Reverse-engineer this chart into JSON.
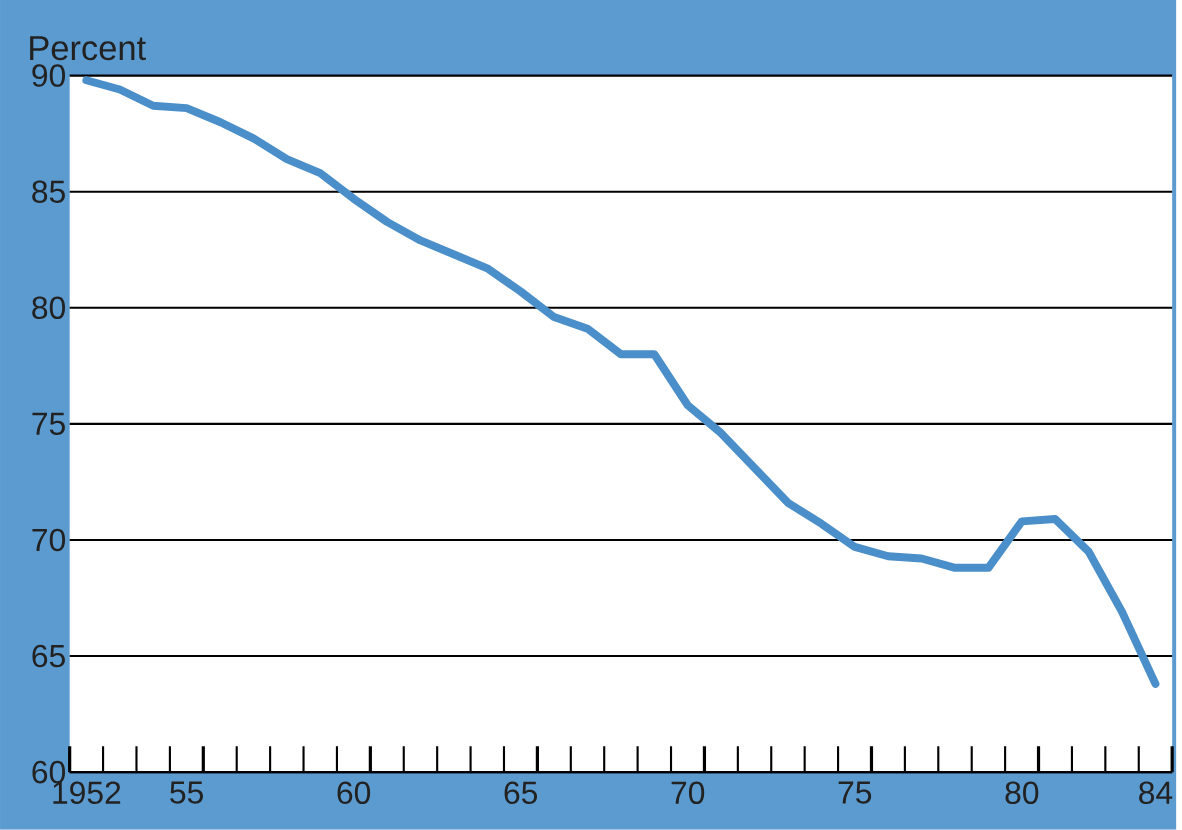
{
  "chart_data": {
    "type": "line",
    "ylabel": "Percent",
    "x": [
      1952,
      1953,
      1954,
      1955,
      1956,
      1957,
      1958,
      1959,
      1960,
      1961,
      1962,
      1963,
      1964,
      1965,
      1966,
      1967,
      1968,
      1969,
      1970,
      1971,
      1972,
      1973,
      1974,
      1975,
      1976,
      1977,
      1978,
      1979,
      1980,
      1981,
      1982,
      1983,
      1984
    ],
    "series": [
      {
        "color": "#4a8fc9",
        "values": [
          89.8,
          89.4,
          88.7,
          88.6,
          88.0,
          87.3,
          86.4,
          85.8,
          84.7,
          83.7,
          82.9,
          82.3,
          81.7,
          80.7,
          79.6,
          79.1,
          78.0,
          78.0,
          75.8,
          74.6,
          73.1,
          71.6,
          70.7,
          69.7,
          69.3,
          69.2,
          68.8,
          68.8,
          70.8,
          70.9,
          69.5,
          66.9,
          63.8
        ]
      }
    ],
    "xlim": [
      1951.5,
      1984.5
    ],
    "xticks": [
      {
        "value": 1952,
        "label": "1952"
      },
      {
        "value": 1955,
        "label": "55"
      },
      {
        "value": 1960,
        "label": "60"
      },
      {
        "value": 1965,
        "label": "65"
      },
      {
        "value": 1970,
        "label": "70"
      },
      {
        "value": 1975,
        "label": "75"
      },
      {
        "value": 1980,
        "label": "80"
      },
      {
        "value": 1984,
        "label": "84"
      },
      {
        "value": 1951.5,
        "label": null
      },
      {
        "value": 1952.5,
        "label": null
      },
      {
        "value": 1953.5,
        "label": null
      },
      {
        "value": 1954.5,
        "label": null
      },
      {
        "value": 1955.5,
        "label": null
      },
      {
        "value": 1956.5,
        "label": null
      },
      {
        "value": 1957.5,
        "label": null
      },
      {
        "value": 1958.5,
        "label": null
      },
      {
        "value": 1959.5,
        "label": null
      },
      {
        "value": 1960.5,
        "label": null
      },
      {
        "value": 1961.5,
        "label": null
      },
      {
        "value": 1962.5,
        "label": null
      },
      {
        "value": 1963.5,
        "label": null
      },
      {
        "value": 1964.5,
        "label": null
      },
      {
        "value": 1965.5,
        "label": null
      },
      {
        "value": 1966.5,
        "label": null
      },
      {
        "value": 1967.5,
        "label": null
      },
      {
        "value": 1968.5,
        "label": null
      },
      {
        "value": 1969.5,
        "label": null
      },
      {
        "value": 1970.5,
        "label": null
      },
      {
        "value": 1971.5,
        "label": null
      },
      {
        "value": 1972.5,
        "label": null
      },
      {
        "value": 1973.5,
        "label": null
      },
      {
        "value": 1974.5,
        "label": null
      },
      {
        "value": 1975.5,
        "label": null
      },
      {
        "value": 1976.5,
        "label": null
      },
      {
        "value": 1977.5,
        "label": null
      },
      {
        "value": 1978.5,
        "label": null
      },
      {
        "value": 1979.5,
        "label": null
      },
      {
        "value": 1980.5,
        "label": null
      },
      {
        "value": 1981.5,
        "label": null
      },
      {
        "value": 1982.5,
        "label": null
      },
      {
        "value": 1983.5,
        "label": null
      },
      {
        "value": 1984.5,
        "label": null
      }
    ],
    "ylim": [
      60,
      90
    ],
    "yticks": [
      60,
      65,
      70,
      75,
      80,
      85,
      90
    ],
    "grid": "y",
    "line_style": "solid"
  }
}
